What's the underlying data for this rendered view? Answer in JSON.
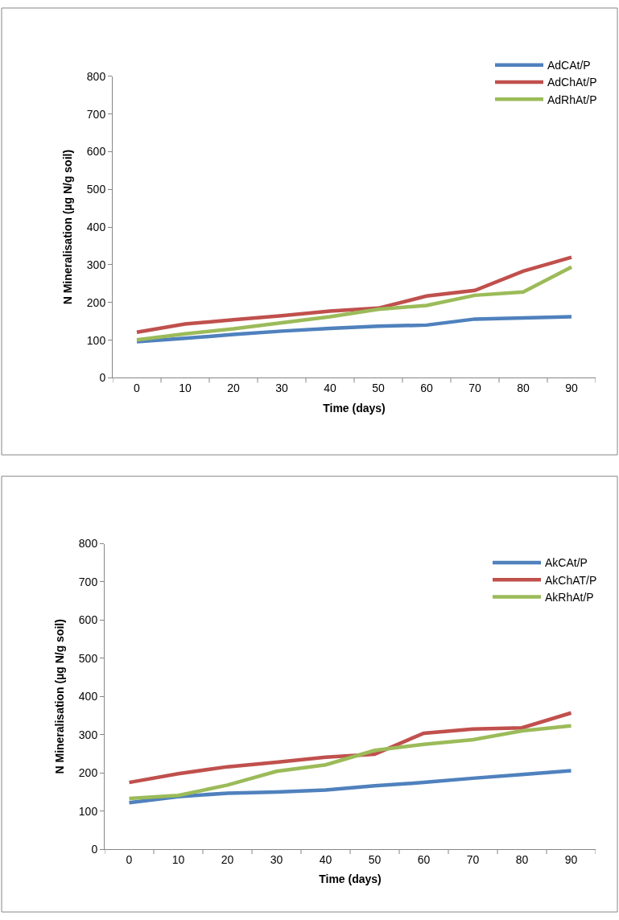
{
  "chart_data": [
    {
      "type": "line",
      "xlabel": "Time (days)",
      "ylabel": "N Mineralisation (µg N/g soil)",
      "categories": [
        "0",
        "10",
        "20",
        "30",
        "40",
        "50",
        "60",
        "70",
        "80",
        "90"
      ],
      "series": [
        {
          "name": "AdCAt/P",
          "color": "#4f81bd",
          "values": [
            96,
            105,
            115,
            124,
            131,
            137,
            140,
            156,
            159,
            162
          ]
        },
        {
          "name": "AdChAt/P",
          "color": "#c0504d",
          "values": [
            121,
            143,
            154,
            165,
            177,
            185,
            217,
            232,
            283,
            320
          ]
        },
        {
          "name": "AdRhAt/P",
          "color": "#9bbb59",
          "values": [
            101,
            117,
            130,
            146,
            162,
            182,
            192,
            219,
            228,
            294
          ]
        }
      ],
      "ylim": [
        0,
        800
      ],
      "yticks": [
        0,
        100,
        200,
        300,
        400,
        500,
        600,
        700,
        800
      ],
      "legend": "top right",
      "marker": "none",
      "line_style": "solid"
    },
    {
      "type": "line",
      "xlabel": "Time (days)",
      "ylabel": "N Mineralisation (µg N/g soil)",
      "categories": [
        "0",
        "10",
        "20",
        "30",
        "40",
        "50",
        "60",
        "70",
        "80",
        "90"
      ],
      "series": [
        {
          "name": "AkCAt/P",
          "color": "#4f81bd",
          "values": [
            122,
            138,
            147,
            150,
            155,
            166,
            175,
            186,
            196,
            206
          ]
        },
        {
          "name": "AkChAT/P",
          "color": "#c0504d",
          "values": [
            175,
            198,
            216,
            228,
            241,
            249,
            304,
            315,
            318,
            357
          ]
        },
        {
          "name": "AkRhAt/P",
          "color": "#9bbb59",
          "values": [
            133,
            141,
            168,
            204,
            221,
            259,
            275,
            287,
            310,
            323
          ]
        }
      ],
      "ylim": [
        0,
        800
      ],
      "yticks": [
        0,
        100,
        200,
        300,
        400,
        500,
        600,
        700,
        800
      ],
      "legend": "top right",
      "marker": "none",
      "line_style": "solid"
    }
  ]
}
